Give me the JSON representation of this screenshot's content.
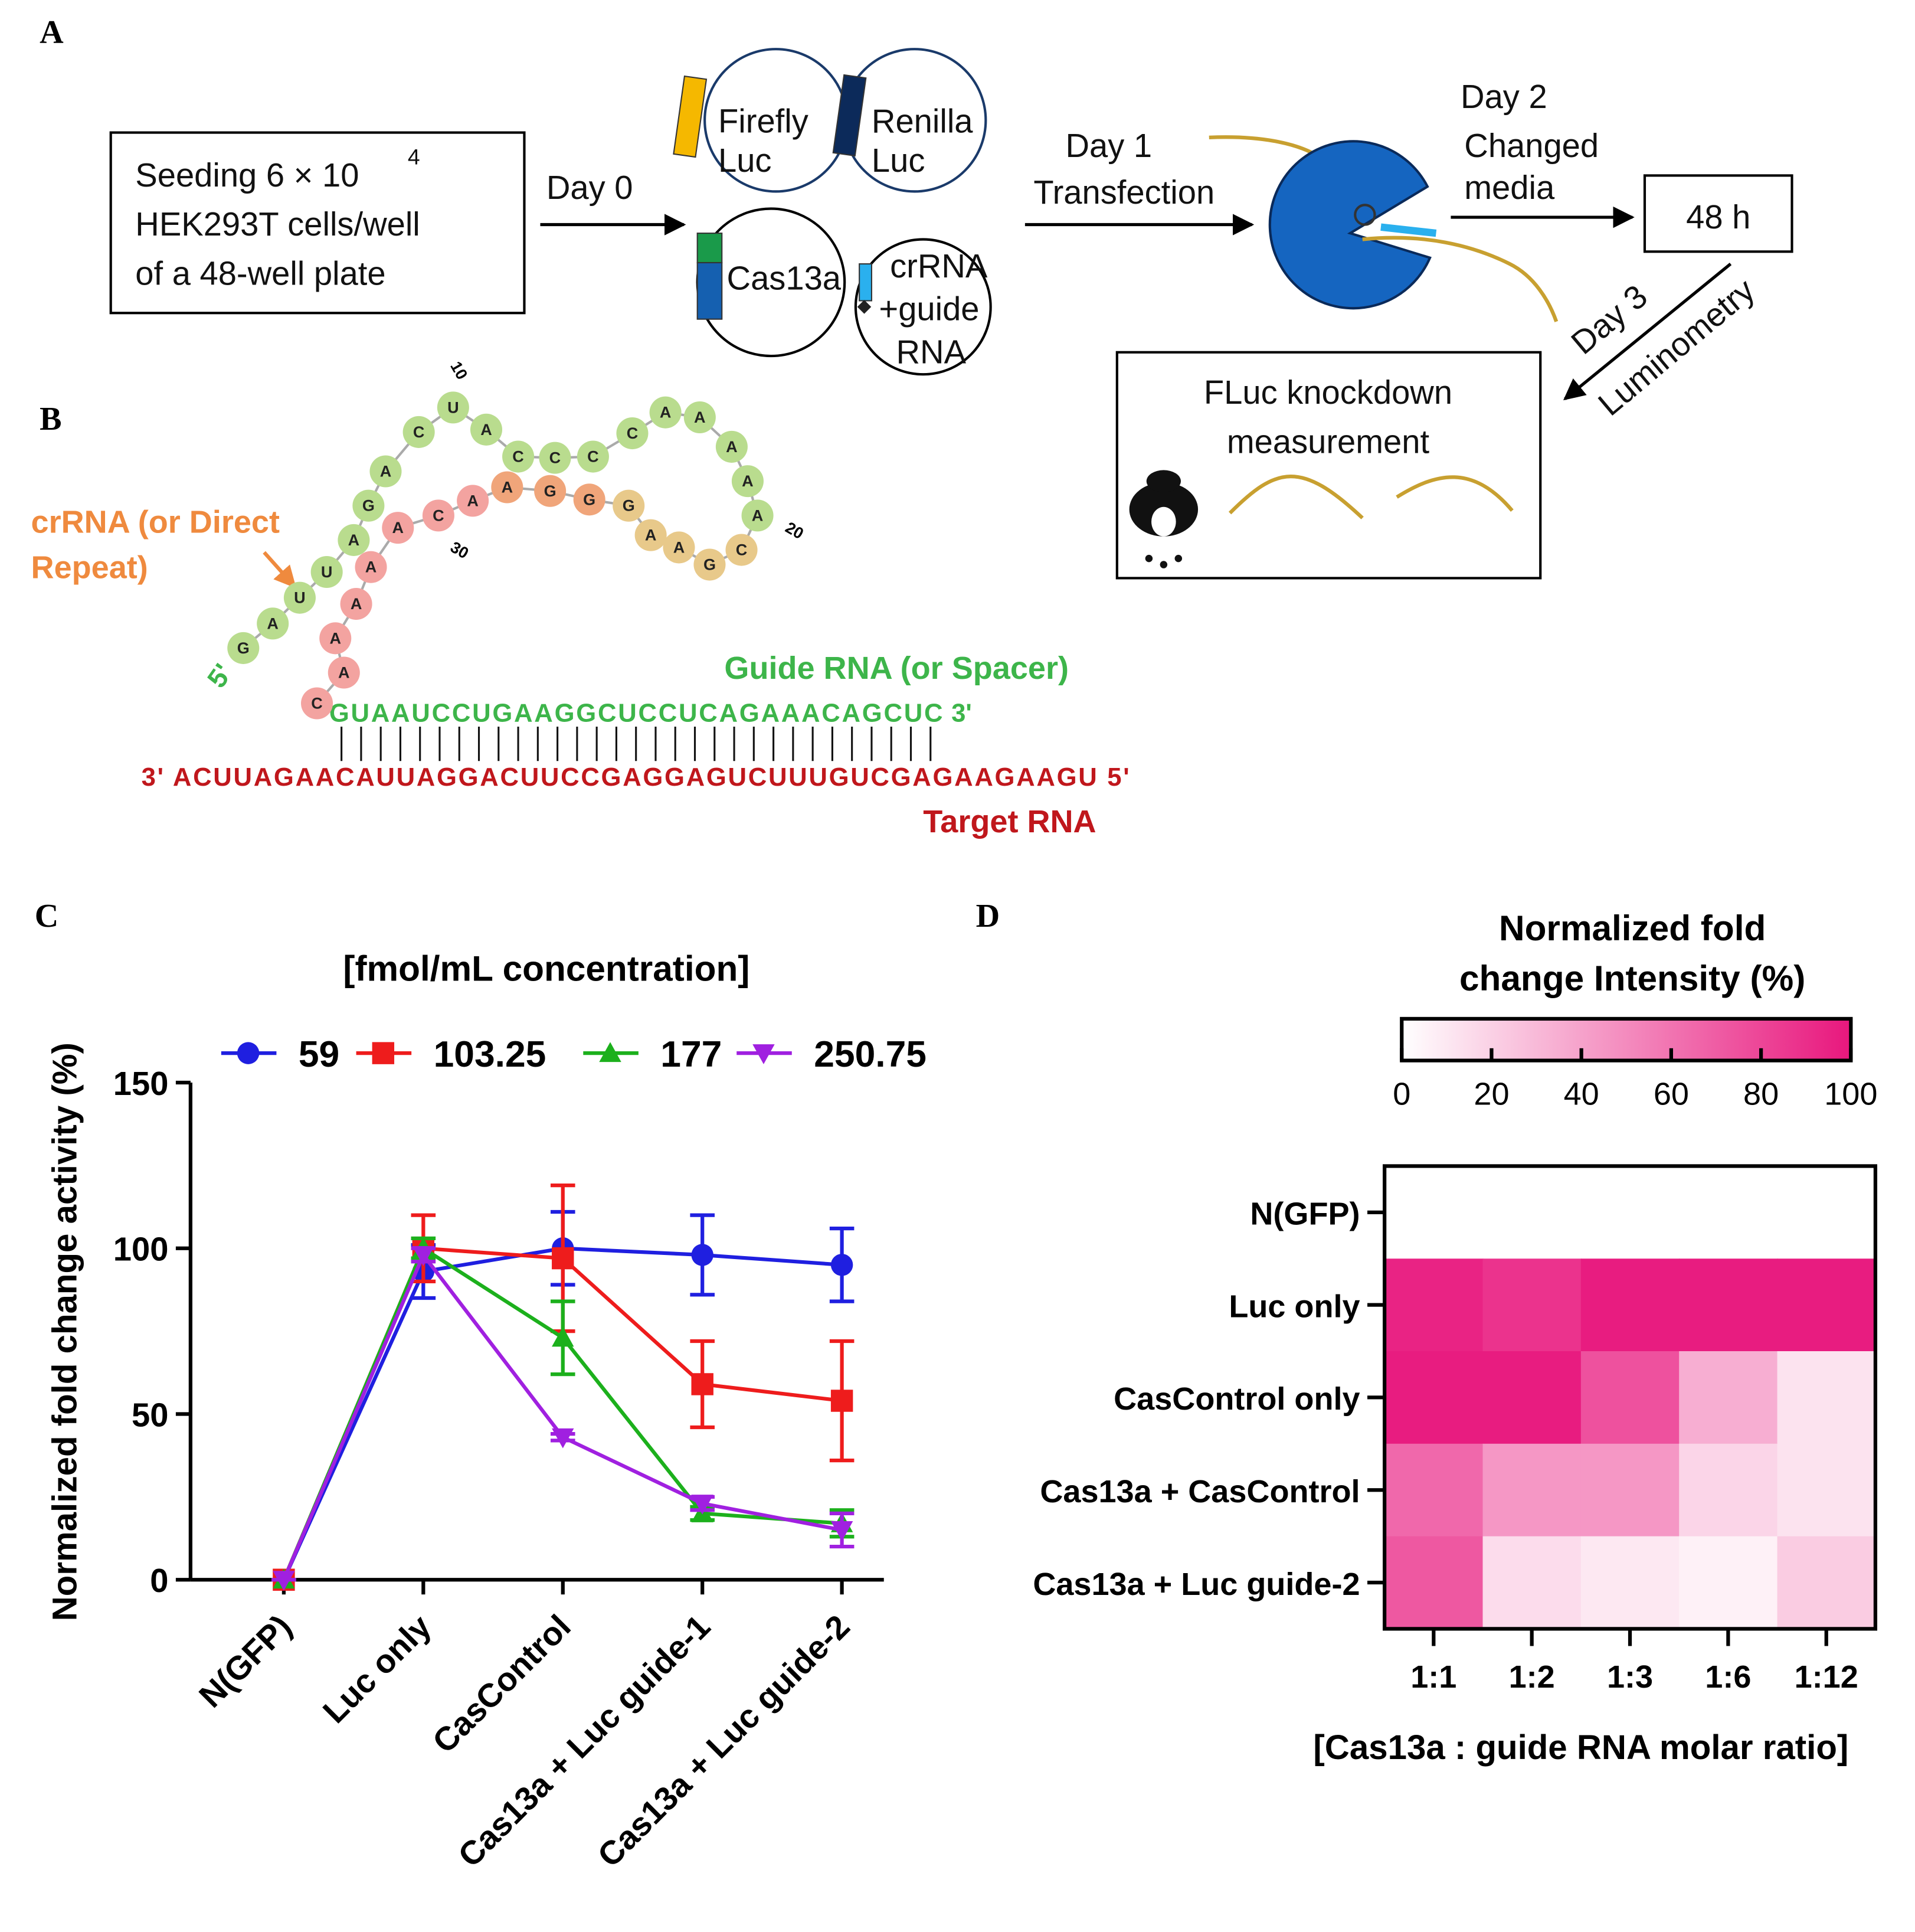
{
  "panel_labels": [
    "A",
    "B",
    "C",
    "D"
  ],
  "panel_a": {
    "seeding": "Seeding 6 × 10",
    "seeding_sup": "4",
    "cells": "HEK293T cells/well",
    "plate": "of a 48-well plate",
    "day0": "Day 0",
    "firefly": [
      "Firefly",
      "Luc"
    ],
    "renilla": [
      "Renilla",
      "Luc"
    ],
    "cas13a": "Cas13a",
    "crrna": [
      "crRNA",
      "+guide",
      "RNA"
    ],
    "day1": "Day 1",
    "transfection": "Transfection",
    "day2": "Day 2",
    "changed_media": [
      "Changed",
      "media"
    ],
    "hours": "48 h",
    "day3": "Day 3",
    "luminometry": "Luminometry",
    "measurement": [
      "FLuc knockdown",
      "measurement"
    ]
  },
  "panel_b": {
    "hairpin": [
      "G",
      "A",
      "U",
      "U",
      "A",
      "G",
      "A",
      "C",
      "U",
      "A",
      "C",
      "C",
      "C",
      "C",
      "A",
      "A",
      "A",
      "A",
      "A",
      "C",
      "G",
      "A",
      "A",
      "G",
      "G",
      "G",
      "A",
      "A",
      "C",
      "A",
      "A",
      "A",
      "A",
      "A",
      "C"
    ],
    "numbers": [
      "10",
      "20",
      "30"
    ],
    "crrna_label": [
      "crRNA (or Direct",
      "Repeat)"
    ],
    "five_prime": "5'",
    "guide_label": "Guide RNA (or Spacer)",
    "guide": "GUAAUCCUGAAGGCUCCUCAGAAACAGCUC",
    "three_prime": "3'",
    "target": "3' ACUUAGAACAUUAGGACUUCCGAGGAGUCUUUGUCGAGAAGAAGU 5'",
    "target_label": "Target RNA"
  },
  "chart_data": [
    {
      "type": "line",
      "title": "[fmol/mL concentration]",
      "y_label": "Normalized fold change activity (%)",
      "categories": [
        "N(GFP)",
        "Luc only",
        "CasControl",
        "Cas13a + Luc guide-1",
        "Cas13a + Luc guide-2"
      ],
      "ylim": [
        0,
        150
      ],
      "yticks": [
        0,
        50,
        100,
        150
      ],
      "series": [
        {
          "name": "59",
          "color": "#1f1fe0",
          "marker": "circle",
          "values": [
            0,
            93,
            100,
            98,
            95
          ],
          "errors": [
            0,
            8,
            11,
            12,
            11
          ]
        },
        {
          "name": "103.25",
          "color": "#ee1c1c",
          "marker": "square",
          "values": [
            0,
            100,
            97,
            59,
            54
          ],
          "errors": [
            0,
            10,
            22,
            13,
            18
          ]
        },
        {
          "name": "177",
          "color": "#1cb01c",
          "marker": "triangle",
          "values": [
            0,
            100,
            73,
            20,
            17
          ],
          "errors": [
            0,
            3,
            11,
            2,
            4
          ]
        },
        {
          "name": "250.75",
          "color": "#a020e0",
          "marker": "triangle-down",
          "values": [
            0,
            98,
            43,
            23,
            15
          ],
          "errors": [
            0,
            2,
            1,
            2,
            5
          ]
        }
      ]
    },
    {
      "type": "heatmap",
      "colorbar_title": [
        "Normalized fold",
        "change Intensity (%)"
      ],
      "x_label": "[Cas13a : guide RNA molar ratio]",
      "rows": [
        "N(GFP)",
        "Luc only",
        "CasControl only",
        "Cas13a + CasControl",
        "Cas13a + Luc guide-2"
      ],
      "columns": [
        "1:1",
        "1:2",
        "1:3",
        "1:6",
        "1:12"
      ],
      "values": [
        [
          0,
          0,
          0,
          0,
          0
        ],
        [
          95,
          88,
          98,
          98,
          98
        ],
        [
          98,
          98,
          75,
          35,
          12
        ],
        [
          65,
          45,
          45,
          18,
          12
        ],
        [
          72,
          15,
          10,
          6,
          22
        ]
      ],
      "clim": [
        0,
        100
      ],
      "cticks": [
        0,
        20,
        40,
        60,
        80,
        100
      ],
      "colormap": [
        "#ffffff",
        "#e8177d"
      ]
    }
  ]
}
